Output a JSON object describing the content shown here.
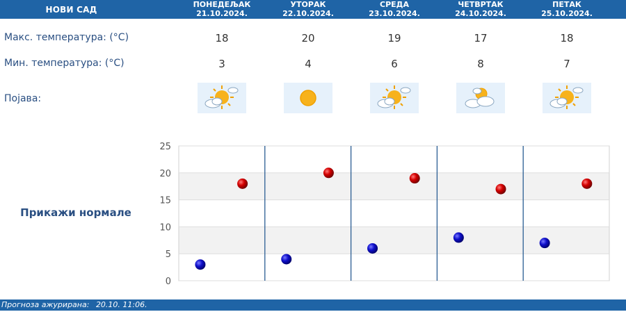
{
  "header": {
    "city": "НОВИ САД"
  },
  "days": [
    {
      "name": "ПОНЕДЕЉАК",
      "date": "21.10.2024.",
      "max": "18",
      "min": "3",
      "icon": "partly-cloudy-sun-icon"
    },
    {
      "name": "УТОРАК",
      "date": "22.10.2024.",
      "max": "20",
      "min": "4",
      "icon": "sun-icon"
    },
    {
      "name": "СРЕДА",
      "date": "23.10.2024.",
      "max": "19",
      "min": "6",
      "icon": "partly-cloudy-sun-icon"
    },
    {
      "name": "ЧЕТВРТАК",
      "date": "24.10.2024.",
      "max": "17",
      "min": "8",
      "icon": "cloudy-sun-icon"
    },
    {
      "name": "ПЕТАК",
      "date": "25.10.2024.",
      "max": "18",
      "min": "7",
      "icon": "partly-cloudy-sun-icon"
    }
  ],
  "labels": {
    "max_temp": "Макс. температура: (°C)",
    "min_temp": "Мин. температура: (°C)",
    "phenomenon": "Појава:",
    "show_normals": "Прикажи нормале"
  },
  "chart_data": {
    "type": "scatter",
    "categories": [
      "ПОНЕДЕЉАК",
      "УТОРАК",
      "СРЕДА",
      "ЧЕТВРТАК",
      "ПЕТАК"
    ],
    "series": [
      {
        "values": [
          18,
          20,
          19,
          17,
          18
        ],
        "color": "#cc0000"
      },
      {
        "values": [
          3,
          4,
          6,
          8,
          7
        ],
        "color": "#0000cc"
      }
    ],
    "ylim": [
      0,
      25
    ],
    "yticks": [
      "0",
      "5",
      "10",
      "15",
      "20",
      "25"
    ],
    "grid": true
  },
  "footer": {
    "label": "Прогноза ажурирана:",
    "updated": "20.10. 11:06."
  },
  "colors": {
    "header_bg": "#1f64a6",
    "label": "#2a4f82",
    "band": "#f2f2f2"
  }
}
